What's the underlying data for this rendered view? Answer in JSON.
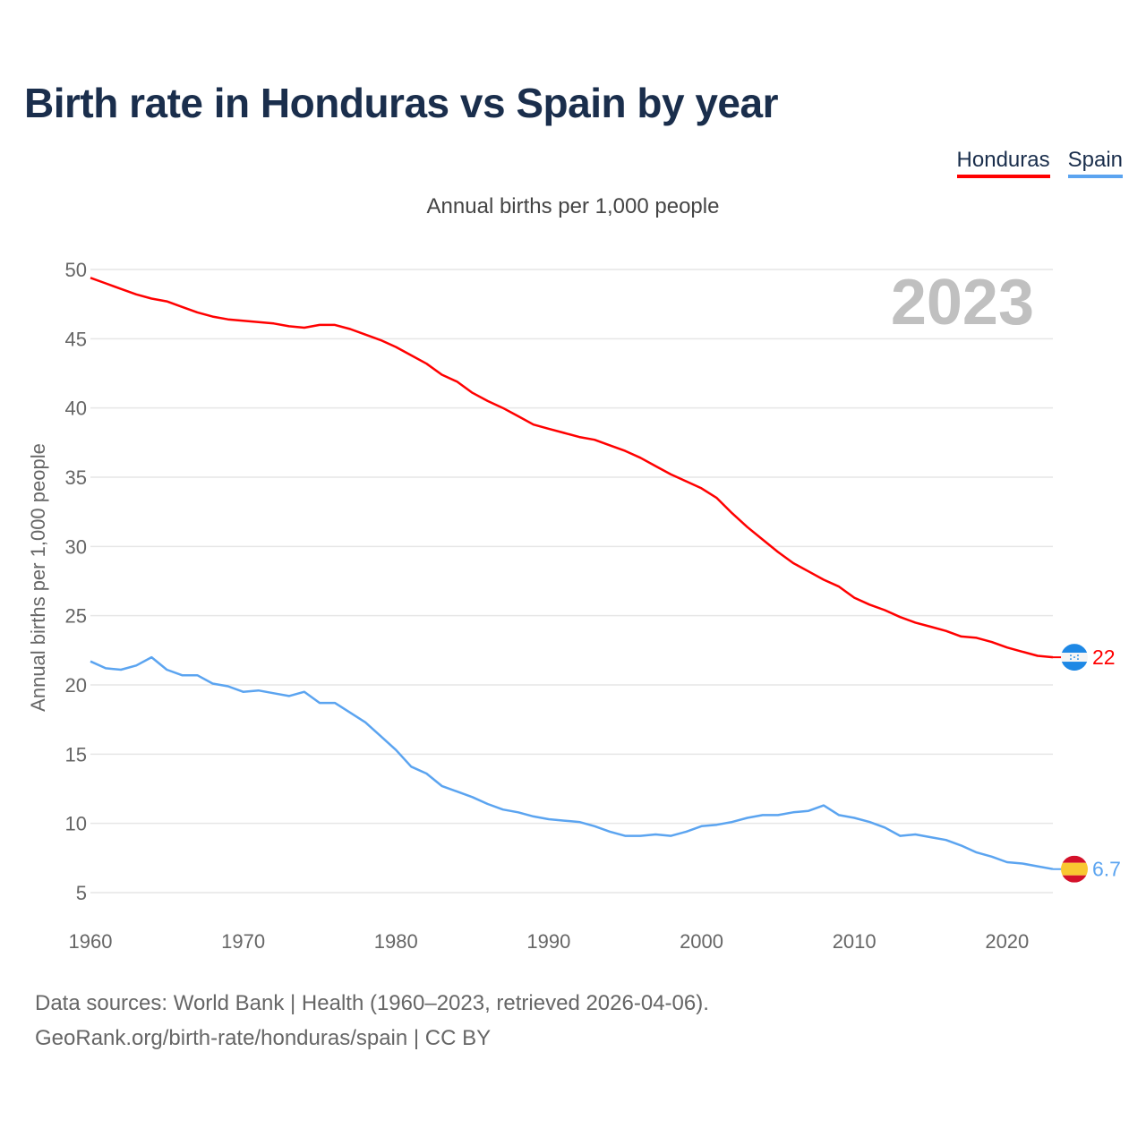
{
  "title": "Birth rate in Honduras vs Spain by year",
  "subtitle": "Annual births per 1,000 people",
  "footer": {
    "line1": "Data sources: World Bank | Health (1960–2023, retrieved 2026-04-06).",
    "line2": "GeoRank.org/birth-rate/honduras/spain | CC BY"
  },
  "chart_data": {
    "type": "line",
    "title": "Birth rate in Honduras vs Spain by year",
    "ylabel": "Annual births per 1,000 people",
    "xlabel": "",
    "year_label": "2023",
    "xlim": [
      1960,
      2023
    ],
    "ylim": [
      5,
      50
    ],
    "xticks": [
      "1960",
      "1970",
      "1980",
      "1990",
      "2000",
      "2010",
      "2020"
    ],
    "yticks": [
      "5",
      "10",
      "15",
      "20",
      "25",
      "30",
      "35",
      "40",
      "45",
      "50"
    ],
    "grid": true,
    "legend_position": "top-right",
    "x_start": 1960,
    "series": [
      {
        "name": "Honduras",
        "color": "#ff0000",
        "end_label": "22",
        "flag": "honduras-flag",
        "values": [
          49.4,
          49.0,
          48.6,
          48.2,
          47.9,
          47.7,
          47.3,
          46.9,
          46.6,
          46.4,
          46.3,
          46.2,
          46.1,
          45.9,
          45.8,
          46.0,
          46.0,
          45.7,
          45.3,
          44.9,
          44.4,
          43.8,
          43.2,
          42.4,
          41.9,
          41.1,
          40.5,
          40.0,
          39.4,
          38.8,
          38.5,
          38.2,
          37.9,
          37.7,
          37.3,
          36.9,
          36.4,
          35.8,
          35.2,
          34.7,
          34.2,
          33.5,
          32.4,
          31.4,
          30.5,
          29.6,
          28.8,
          28.2,
          27.6,
          27.1,
          26.3,
          25.8,
          25.4,
          24.9,
          24.5,
          24.2,
          23.9,
          23.5,
          23.4,
          23.1,
          22.7,
          22.4,
          22.1,
          22.0
        ]
      },
      {
        "name": "Spain",
        "color": "#5ba4f0",
        "end_label": "6.7",
        "flag": "spain-flag",
        "values": [
          21.7,
          21.2,
          21.1,
          21.4,
          22.0,
          21.1,
          20.7,
          20.7,
          20.1,
          19.9,
          19.5,
          19.6,
          19.4,
          19.2,
          19.5,
          18.7,
          18.7,
          18.0,
          17.3,
          16.3,
          15.3,
          14.1,
          13.6,
          12.7,
          12.3,
          11.9,
          11.4,
          11.0,
          10.8,
          10.5,
          10.3,
          10.2,
          10.1,
          9.8,
          9.4,
          9.1,
          9.1,
          9.2,
          9.1,
          9.4,
          9.8,
          9.9,
          10.1,
          10.4,
          10.6,
          10.6,
          10.8,
          10.9,
          11.3,
          10.6,
          10.4,
          10.1,
          9.7,
          9.1,
          9.2,
          9.0,
          8.8,
          8.4,
          7.9,
          7.6,
          7.2,
          7.1,
          6.9,
          6.7
        ]
      }
    ]
  }
}
